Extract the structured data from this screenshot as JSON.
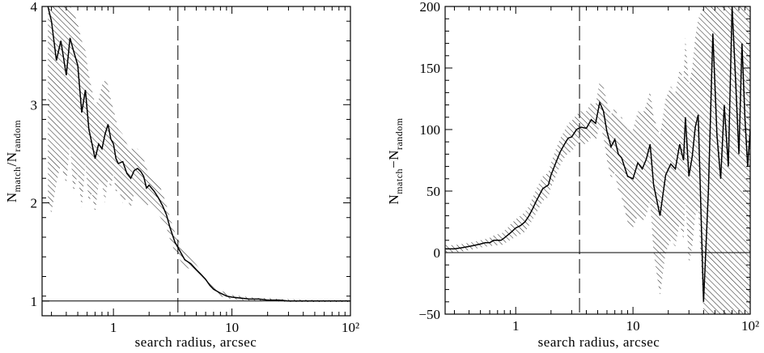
{
  "chart_data": [
    {
      "type": "line",
      "x_scale": "log",
      "xlim": [
        0.25,
        100
      ],
      "ylim": [
        0.85,
        4
      ],
      "xlabel": "search radius, arcsec",
      "ylabel": "N_match/N_random",
      "ylabel_main": "N",
      "ylabel_sub1": "match",
      "ylabel_mid": "/N",
      "ylabel_sub2": "random",
      "x_ticks": [
        {
          "value": 1,
          "label": "1"
        },
        {
          "value": 10,
          "label": "10"
        },
        {
          "value": 100,
          "label": "10²"
        }
      ],
      "y_ticks": [
        {
          "value": 1,
          "label": "1"
        },
        {
          "value": 2,
          "label": "2"
        },
        {
          "value": 3,
          "label": "3"
        },
        {
          "value": 4,
          "label": "4"
        }
      ],
      "reference_line_y": 1,
      "dashed_line_x": 3.5,
      "series": [
        {
          "style": "solid line with hatched uncertainty band",
          "x": [
            0.28,
            0.3,
            0.33,
            0.36,
            0.4,
            0.43,
            0.46,
            0.5,
            0.54,
            0.58,
            0.62,
            0.66,
            0.7,
            0.75,
            0.8,
            0.85,
            0.9,
            0.95,
            1.0,
            1.05,
            1.1,
            1.2,
            1.3,
            1.4,
            1.5,
            1.6,
            1.7,
            1.8,
            1.9,
            2.0,
            2.2,
            2.4,
            2.6,
            2.8,
            3.0,
            3.3,
            3.6,
            4.0,
            4.5,
            5.0,
            5.5,
            6.0,
            6.5,
            7.0,
            8.0,
            9.0,
            10,
            12,
            14,
            17,
            20,
            25,
            30,
            40,
            50,
            60,
            70,
            80,
            100
          ],
          "y": [
            4.0,
            3.85,
            3.45,
            3.65,
            3.3,
            3.68,
            3.55,
            3.4,
            2.92,
            3.15,
            2.75,
            2.6,
            2.45,
            2.6,
            2.55,
            2.7,
            2.8,
            2.65,
            2.6,
            2.45,
            2.4,
            2.42,
            2.3,
            2.25,
            2.33,
            2.35,
            2.32,
            2.27,
            2.15,
            2.18,
            2.12,
            2.05,
            1.97,
            1.88,
            1.75,
            1.6,
            1.52,
            1.42,
            1.38,
            1.32,
            1.27,
            1.22,
            1.16,
            1.12,
            1.08,
            1.05,
            1.04,
            1.03,
            1.02,
            1.02,
            1.01,
            1.01,
            1.0,
            1.0,
            1.0,
            1.0,
            1.0,
            1.0,
            1.0
          ],
          "band_upper": [
            4.0,
            4.0,
            4.0,
            4.0,
            4.0,
            4.0,
            3.95,
            3.82,
            3.65,
            3.55,
            3.3,
            3.15,
            3.0,
            3.05,
            3.2,
            3.25,
            3.2,
            3.05,
            2.95,
            2.85,
            2.75,
            2.7,
            2.6,
            2.55,
            2.55,
            2.55,
            2.5,
            2.45,
            2.35,
            2.3,
            2.25,
            2.2,
            2.1,
            1.98,
            1.85,
            1.7,
            1.6,
            1.5,
            1.43,
            1.37,
            1.31,
            1.26,
            1.2,
            1.15,
            1.11,
            1.08,
            1.06,
            1.05,
            1.04,
            1.03,
            1.03,
            1.02,
            1.02,
            1.015,
            1.01,
            1.01,
            1.01,
            1.01,
            1.01
          ],
          "band_lower": [
            2.0,
            1.9,
            2.2,
            2.4,
            2.2,
            2.6,
            2.1,
            2.3,
            1.95,
            2.4,
            2.0,
            2.1,
            1.9,
            2.2,
            2.2,
            2.0,
            2.25,
            2.15,
            2.3,
            2.1,
            2.15,
            2.0,
            2.05,
            1.95,
            2.1,
            2.05,
            2.05,
            2.0,
            1.95,
            2.0,
            1.95,
            1.88,
            1.82,
            1.75,
            1.63,
            1.5,
            1.43,
            1.35,
            1.32,
            1.27,
            1.22,
            1.18,
            1.12,
            1.08,
            1.05,
            1.03,
            1.02,
            1.01,
            1.0,
            1.0,
            1.0,
            0.995,
            0.99,
            0.99,
            0.99,
            0.99,
            0.99,
            0.99,
            0.99
          ]
        }
      ]
    },
    {
      "type": "line",
      "x_scale": "log",
      "xlim": [
        0.25,
        100
      ],
      "ylim": [
        -50,
        200
      ],
      "xlabel": "search radius, arcsec",
      "ylabel": "N_match−N_random",
      "ylabel_main": "N",
      "ylabel_sub1": "match",
      "ylabel_mid": "−N",
      "ylabel_sub2": "random",
      "x_ticks": [
        {
          "value": 1,
          "label": "1"
        },
        {
          "value": 10,
          "label": "10"
        },
        {
          "value": 100,
          "label": "10²"
        }
      ],
      "y_ticks": [
        {
          "value": -50,
          "label": "−50"
        },
        {
          "value": 0,
          "label": "0"
        },
        {
          "value": 50,
          "label": "50"
        },
        {
          "value": 100,
          "label": "100"
        },
        {
          "value": 150,
          "label": "150"
        },
        {
          "value": 200,
          "label": "200"
        }
      ],
      "reference_line_y": 0,
      "dashed_line_x": 3.5,
      "series": [
        {
          "style": "solid line with hatched uncertainty band",
          "x": [
            0.25,
            0.3,
            0.35,
            0.4,
            0.45,
            0.5,
            0.55,
            0.6,
            0.65,
            0.7,
            0.75,
            0.8,
            0.85,
            0.9,
            1.0,
            1.1,
            1.2,
            1.3,
            1.4,
            1.5,
            1.7,
            1.9,
            2.0,
            2.2,
            2.4,
            2.6,
            2.8,
            3.0,
            3.3,
            3.6,
            4.0,
            4.4,
            4.8,
            5.2,
            5.6,
            6.0,
            6.5,
            7.0,
            7.5,
            8.0,
            9.0,
            10,
            11,
            12,
            13,
            14,
            15,
            17,
            19,
            21,
            23,
            25,
            27,
            28,
            30,
            32,
            34,
            36,
            40,
            44,
            48,
            52,
            56,
            60,
            65,
            70,
            75,
            80,
            85,
            90,
            95,
            100
          ],
          "y": [
            3,
            3,
            4,
            5,
            6,
            7,
            8,
            8,
            10,
            10,
            10,
            12,
            14,
            16,
            20,
            22,
            25,
            30,
            36,
            42,
            52,
            55,
            63,
            73,
            82,
            88,
            93,
            94,
            100,
            102,
            101,
            108,
            105,
            122,
            115,
            98,
            86,
            92,
            80,
            77,
            62,
            60,
            73,
            68,
            76,
            88,
            55,
            30,
            63,
            72,
            68,
            88,
            75,
            110,
            62,
            78,
            102,
            112,
            -40,
            50,
            178,
            95,
            60,
            120,
            70,
            200,
            140,
            80,
            170,
            110,
            70,
            100
          ],
          "band_upper": [
            6,
            6,
            7,
            8,
            9,
            10,
            11,
            12,
            14,
            15,
            15,
            18,
            20,
            23,
            27,
            30,
            33,
            38,
            45,
            52,
            62,
            65,
            73,
            84,
            93,
            99,
            105,
            107,
            112,
            115,
            115,
            122,
            120,
            140,
            135,
            122,
            112,
            118,
            110,
            110,
            100,
            100,
            115,
            112,
            120,
            132,
            110,
            95,
            125,
            135,
            130,
            150,
            140,
            175,
            135,
            150,
            175,
            190,
            200,
            200,
            200,
            200,
            200,
            200,
            200,
            200,
            200,
            200,
            200,
            200,
            200,
            200
          ],
          "band_lower": [
            0,
            0,
            1,
            2,
            3,
            4,
            5,
            5,
            6,
            6,
            6,
            7,
            9,
            10,
            13,
            15,
            17,
            22,
            27,
            32,
            42,
            45,
            53,
            62,
            71,
            77,
            81,
            82,
            88,
            89,
            88,
            94,
            90,
            104,
            95,
            75,
            60,
            65,
            50,
            45,
            25,
            20,
            30,
            25,
            30,
            42,
            0,
            -35,
            0,
            10,
            5,
            25,
            10,
            45,
            -10,
            5,
            30,
            35,
            -50,
            -50,
            -50,
            -50,
            -50,
            -50,
            -50,
            -50,
            -50,
            -50,
            -50,
            -50,
            -50,
            -50
          ]
        }
      ]
    }
  ]
}
